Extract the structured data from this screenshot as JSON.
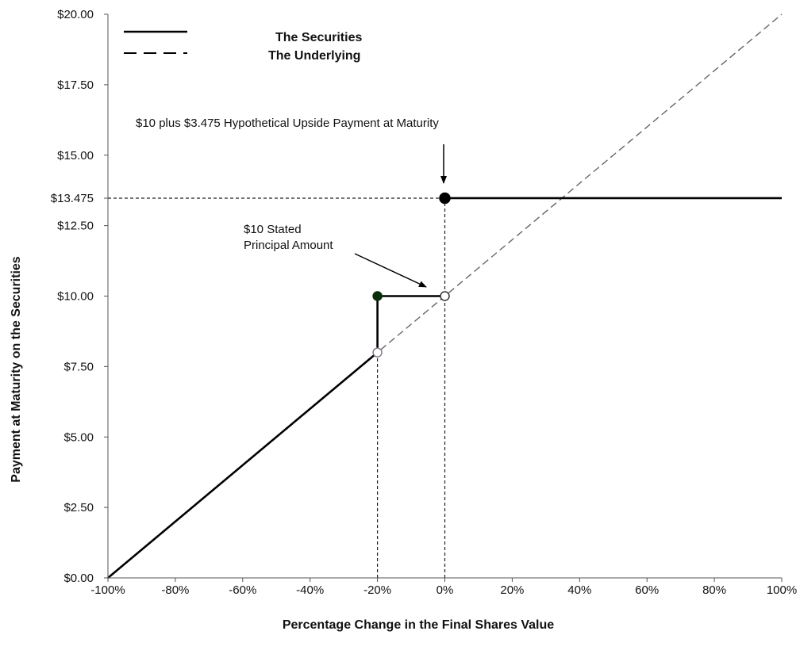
{
  "chart_data": {
    "type": "line",
    "title": "",
    "xlabel": "Percentage Change in the Final Shares Value",
    "ylabel": "Payment at Maturity on the Securities",
    "xlim": [
      -100,
      100
    ],
    "ylim": [
      0,
      20
    ],
    "x_ticks": [
      -100,
      -80,
      -60,
      -40,
      -20,
      0,
      20,
      40,
      60,
      80,
      100
    ],
    "x_tick_labels": [
      "-100%",
      "-80%",
      "-60%",
      "-40%",
      "-20%",
      "0%",
      "20%",
      "40%",
      "60%",
      "80%",
      "100%"
    ],
    "y_ticks": [
      0,
      2.5,
      5,
      7.5,
      10,
      12.5,
      13.475,
      15,
      17.5,
      20
    ],
    "y_tick_labels": [
      "$0.00",
      "$2.50",
      "$5.00",
      "$7.50",
      "$10.00",
      "$12.50",
      "$13.475",
      "$15.00",
      "$17.50",
      "$20.00"
    ],
    "grid": false,
    "legend": {
      "placement": "top-left",
      "entries": [
        {
          "label": "The Securities",
          "style": "solid"
        },
        {
          "label": "The Underlying",
          "style": "dashed"
        }
      ]
    },
    "series": [
      {
        "name": "The Securities",
        "style": "solid",
        "color": "#000000",
        "segments": [
          [
            [
              -100,
              0
            ],
            [
              -20,
              8
            ]
          ],
          [
            [
              -20,
              8
            ],
            [
              -20,
              10
            ]
          ],
          [
            [
              -20,
              10
            ],
            [
              0,
              10
            ]
          ],
          [
            [
              0,
              13.475
            ],
            [
              100,
              13.475
            ]
          ]
        ]
      },
      {
        "name": "The Underlying",
        "style": "dashed",
        "color": "#666666",
        "segments": [
          [
            [
              -100,
              0
            ],
            [
              100,
              20
            ]
          ]
        ]
      }
    ],
    "markers": [
      {
        "x": -20,
        "y": 10,
        "fill": "filled",
        "color": "#0b2e0b"
      },
      {
        "x": -20,
        "y": 8,
        "fill": "open",
        "color": "#8a7a8a"
      },
      {
        "x": 0,
        "y": 10,
        "fill": "open",
        "color": "#333333"
      },
      {
        "x": 0,
        "y": 13.475,
        "fill": "filled",
        "color": "#000000"
      }
    ],
    "reference_lines": [
      {
        "from": [
          -100,
          13.475
        ],
        "to": [
          0,
          13.475
        ]
      },
      {
        "from": [
          -20,
          0
        ],
        "to": [
          -20,
          8
        ]
      },
      {
        "from": [
          0,
          0
        ],
        "to": [
          0,
          13.475
        ]
      }
    ],
    "annotations": [
      {
        "text": "$10 plus $3.475 Hypothetical Upside Payment at Maturity",
        "target": [
          0,
          13.475
        ]
      },
      {
        "text_lines": [
          "$10 Stated",
          "Principal Amount"
        ],
        "target": [
          0,
          10
        ]
      }
    ]
  }
}
